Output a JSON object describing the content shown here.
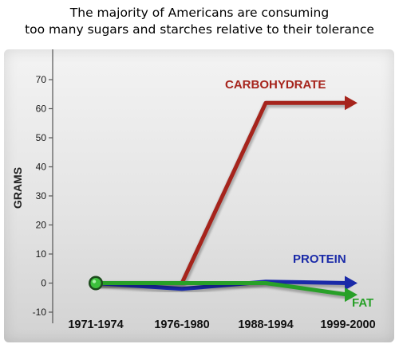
{
  "headline": {
    "line1": "The majority of Americans are consuming",
    "line2": "too many sugars and starches relative to their tolerance"
  },
  "chart_data": {
    "type": "line",
    "title": "The majority of Americans are consuming too many sugars and starches relative to their tolerance",
    "xlabel": "",
    "ylabel": "GRAMS",
    "categories": [
      "1971-1974",
      "1976-1980",
      "1988-1994",
      "1999-2000"
    ],
    "yticks": [
      -10,
      0,
      10,
      20,
      30,
      40,
      50,
      60,
      70
    ],
    "ylim": [
      -10,
      70
    ],
    "grid": false,
    "series": [
      {
        "name": "CARBOHYDRATE",
        "values": [
          0,
          0,
          62,
          62
        ],
        "color": "#a6241c"
      },
      {
        "name": "PROTEIN",
        "values": [
          0,
          -2,
          0.5,
          0
        ],
        "color": "#1a2aa8"
      },
      {
        "name": "FAT",
        "values": [
          0,
          0,
          0,
          -4
        ],
        "color": "#28a028"
      }
    ]
  }
}
